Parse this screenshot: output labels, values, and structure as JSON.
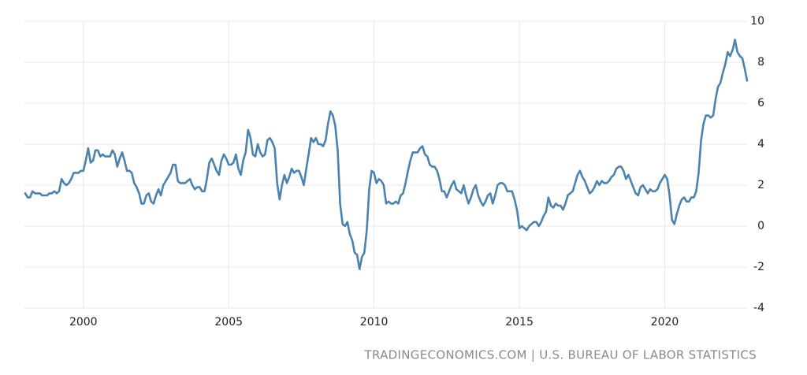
{
  "chart_data": {
    "type": "line",
    "source": "TRADINGECONOMICS.COM | U.S. BUREAU OF LABOR STATISTICS",
    "categories": [
      null,
      null,
      null,
      null,
      null,
      null,
      null,
      null,
      null,
      null,
      null,
      null,
      null,
      null,
      null,
      null,
      null,
      null,
      null,
      null,
      null,
      null,
      null,
      null,
      "2000",
      null,
      null,
      null,
      null,
      null,
      null,
      null,
      null,
      null,
      null,
      null,
      null,
      null,
      null,
      null,
      null,
      null,
      null,
      null,
      null,
      null,
      null,
      null,
      null,
      null,
      null,
      null,
      null,
      null,
      null,
      null,
      null,
      null,
      null,
      null,
      null,
      null,
      null,
      null,
      null,
      null,
      null,
      null,
      null,
      null,
      null,
      null,
      null,
      null,
      null,
      null,
      null,
      null,
      null,
      null,
      null,
      null,
      null,
      null,
      "2005",
      null,
      null,
      null,
      null,
      null,
      null,
      null,
      null,
      null,
      null,
      null,
      null,
      null,
      null,
      null,
      null,
      null,
      null,
      null,
      null,
      null,
      null,
      null,
      null,
      null,
      null,
      null,
      null,
      null,
      null,
      null,
      null,
      null,
      null,
      null,
      null,
      null,
      null,
      null,
      null,
      null,
      null,
      null,
      null,
      null,
      null,
      null,
      null,
      null,
      null,
      null,
      null,
      null,
      null,
      null,
      null,
      null,
      null,
      null,
      "2010",
      null,
      null,
      null,
      null,
      null,
      null,
      null,
      null,
      null,
      null,
      null,
      null,
      null,
      null,
      null,
      null,
      null,
      null,
      null,
      null,
      null,
      null,
      null,
      null,
      null,
      null,
      null,
      null,
      null,
      null,
      null,
      null,
      null,
      null,
      null,
      null,
      null,
      null,
      null,
      null,
      null,
      null,
      null,
      null,
      null,
      null,
      null,
      null,
      null,
      null,
      null,
      null,
      null,
      null,
      null,
      null,
      null,
      null,
      null,
      "2015",
      null,
      null,
      null,
      null,
      null,
      null,
      null,
      null,
      null,
      null,
      null,
      null,
      null,
      null,
      null,
      null,
      null,
      null,
      null,
      null,
      null,
      null,
      null,
      null,
      null,
      null,
      null,
      null,
      null,
      null,
      null,
      null,
      null,
      null,
      null,
      null,
      null,
      null,
      null,
      null,
      null,
      null,
      null,
      null,
      null,
      null,
      null,
      null,
      null,
      null,
      null,
      null,
      null,
      null,
      null,
      null,
      null,
      null,
      null,
      "2020",
      null,
      null,
      null,
      null,
      null,
      null,
      null,
      null,
      null,
      null,
      null,
      null,
      null,
      null,
      null,
      null,
      null,
      null,
      null,
      null,
      null,
      null,
      null,
      null,
      null,
      null,
      null,
      null,
      null,
      null,
      null,
      null,
      null,
      null
    ],
    "values": [
      1.6,
      1.4,
      1.4,
      1.7,
      1.6,
      1.6,
      1.6,
      1.5,
      1.5,
      1.5,
      1.6,
      1.6,
      1.7,
      1.6,
      1.7,
      2.3,
      2.1,
      2.0,
      2.1,
      2.3,
      2.6,
      2.6,
      2.6,
      2.7,
      2.7,
      3.2,
      3.8,
      3.1,
      3.2,
      3.7,
      3.7,
      3.4,
      3.5,
      3.4,
      3.4,
      3.4,
      3.7,
      3.5,
      2.9,
      3.3,
      3.6,
      3.2,
      2.7,
      2.7,
      2.6,
      2.1,
      1.9,
      1.6,
      1.1,
      1.1,
      1.5,
      1.6,
      1.2,
      1.1,
      1.5,
      1.8,
      1.5,
      2.0,
      2.2,
      2.4,
      2.6,
      3.0,
      3.0,
      2.2,
      2.1,
      2.1,
      2.1,
      2.2,
      2.3,
      2.0,
      1.8,
      1.9,
      1.9,
      1.7,
      1.7,
      2.3,
      3.1,
      3.3,
      3.0,
      2.7,
      2.5,
      3.2,
      3.5,
      3.3,
      3.0,
      3.0,
      3.1,
      3.5,
      2.8,
      2.5,
      3.2,
      3.6,
      4.7,
      4.3,
      3.5,
      3.4,
      4.0,
      3.6,
      3.4,
      3.5,
      4.2,
      4.3,
      4.1,
      3.8,
      2.1,
      1.3,
      2.0,
      2.5,
      2.1,
      2.4,
      2.8,
      2.6,
      2.7,
      2.7,
      2.4,
      2.0,
      2.8,
      3.5,
      4.3,
      4.1,
      4.3,
      4.0,
      4.0,
      3.9,
      4.2,
      5.0,
      5.6,
      5.4,
      4.9,
      3.7,
      1.1,
      0.1,
      0.0,
      0.2,
      -0.4,
      -0.7,
      -1.3,
      -1.4,
      -2.1,
      -1.5,
      -1.3,
      -0.2,
      1.8,
      2.7,
      2.6,
      2.1,
      2.3,
      2.2,
      2.0,
      1.1,
      1.2,
      1.1,
      1.1,
      1.2,
      1.1,
      1.5,
      1.6,
      2.1,
      2.7,
      3.2,
      3.6,
      3.6,
      3.6,
      3.8,
      3.9,
      3.5,
      3.4,
      3.0,
      2.9,
      2.9,
      2.7,
      2.3,
      1.7,
      1.7,
      1.4,
      1.7,
      2.0,
      2.2,
      1.8,
      1.7,
      1.6,
      2.0,
      1.5,
      1.1,
      1.4,
      1.8,
      2.0,
      1.5,
      1.2,
      1.0,
      1.2,
      1.5,
      1.6,
      1.1,
      1.5,
      2.0,
      2.1,
      2.1,
      2.0,
      1.7,
      1.7,
      1.7,
      1.3,
      0.8,
      -0.1,
      0.0,
      -0.1,
      -0.2,
      0.0,
      0.1,
      0.2,
      0.2,
      0.0,
      0.2,
      0.5,
      0.7,
      1.4,
      1.0,
      0.9,
      1.1,
      1.0,
      1.0,
      0.8,
      1.1,
      1.5,
      1.6,
      1.7,
      2.1,
      2.5,
      2.7,
      2.4,
      2.2,
      1.9,
      1.6,
      1.7,
      1.9,
      2.2,
      2.0,
      2.2,
      2.1,
      2.1,
      2.2,
      2.4,
      2.5,
      2.8,
      2.9,
      2.9,
      2.7,
      2.3,
      2.5,
      2.2,
      1.9,
      1.6,
      1.5,
      1.9,
      2.0,
      1.8,
      1.6,
      1.8,
      1.7,
      1.7,
      1.8,
      2.1,
      2.3,
      2.5,
      2.3,
      1.5,
      0.3,
      0.1,
      0.6,
      1.0,
      1.3,
      1.4,
      1.2,
      1.2,
      1.4,
      1.4,
      1.7,
      2.6,
      4.2,
      5.0,
      5.4,
      5.4,
      5.3,
      5.4,
      6.2,
      6.8,
      7.0,
      7.5,
      7.9,
      8.5,
      8.3,
      8.6,
      9.1,
      8.5,
      8.3,
      8.2,
      7.7,
      7.1
    ],
    "color": "#4a82b0",
    "ylim": [
      -4,
      10
    ],
    "yticks": [
      -4,
      -2,
      0,
      2,
      4,
      6,
      8,
      10
    ],
    "grid": true
  }
}
